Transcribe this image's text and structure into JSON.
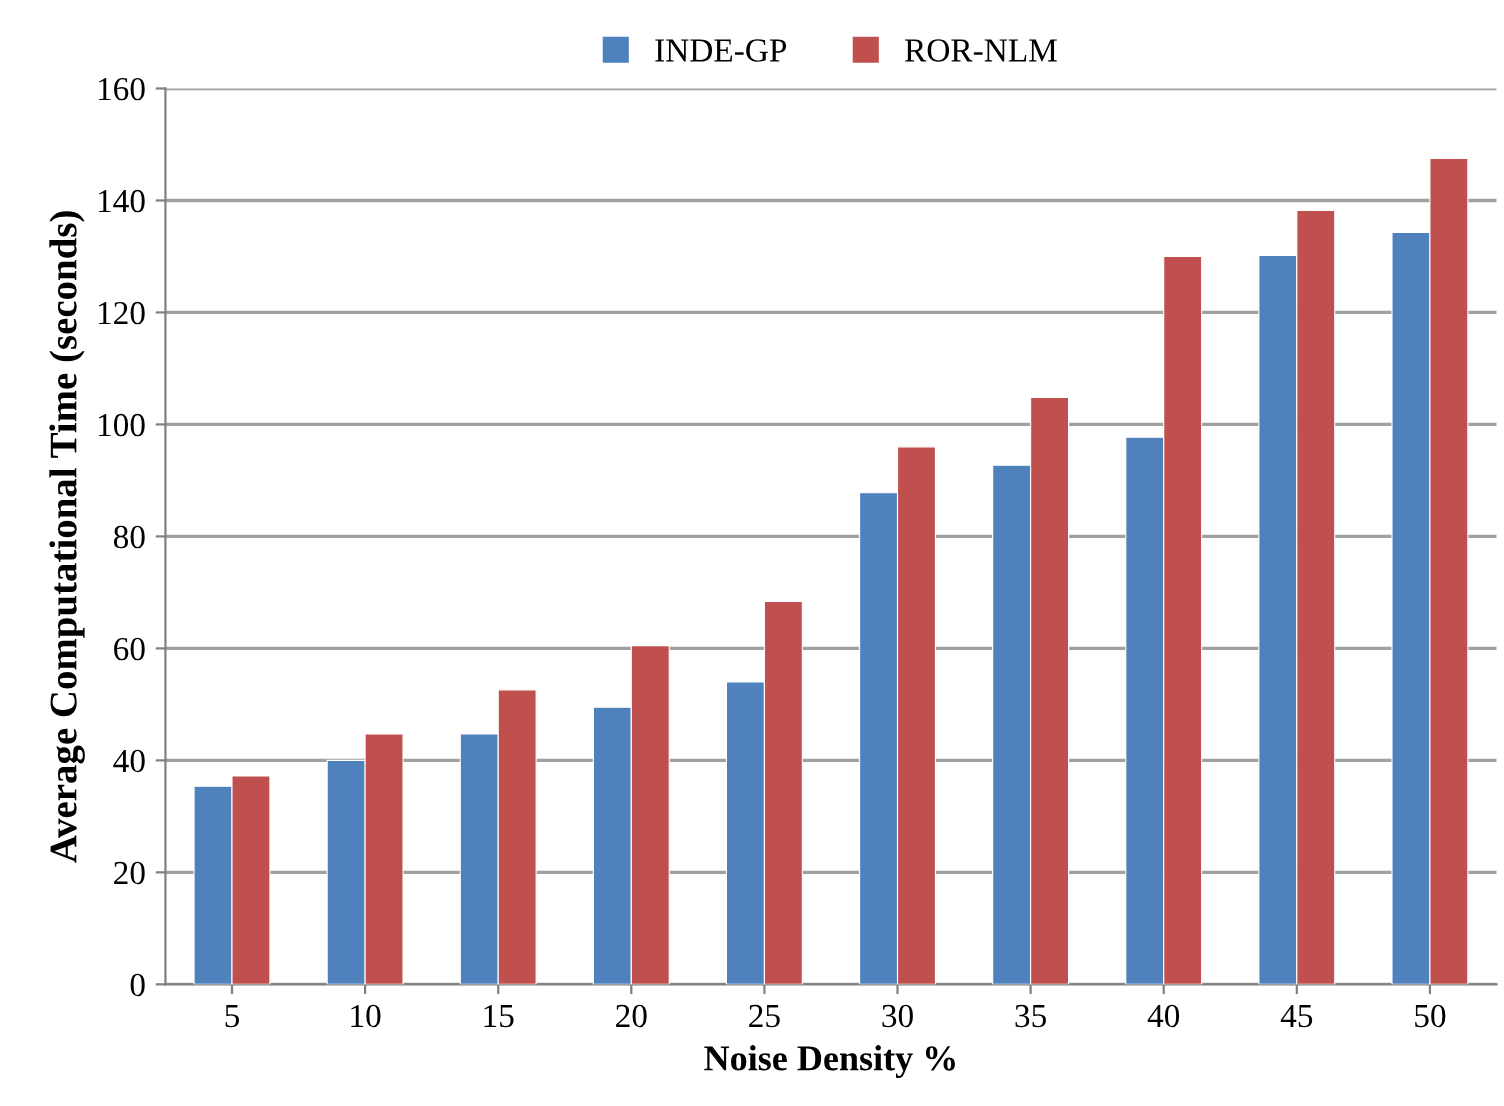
{
  "chart_data": {
    "type": "bar",
    "xlabel": "Noise Density %",
    "ylabel": "Average Computational Time (seconds)",
    "categories": [
      "5",
      "10",
      "15",
      "20",
      "25",
      "30",
      "35",
      "40",
      "45",
      "50"
    ],
    "series": [
      {
        "name": "INDE-GP",
        "color": "#4f81bd",
        "values": [
          35.4,
          40,
          44.7,
          49.5,
          54,
          87.8,
          92.7,
          97.7,
          130.2,
          134.3
        ]
      },
      {
        "name": "ROR-NLM",
        "color": "#c0504d",
        "values": [
          37.2,
          44.7,
          52.6,
          60.5,
          68.4,
          96,
          104.8,
          130,
          138.2,
          147.5
        ]
      }
    ],
    "ylim": [
      0,
      160
    ],
    "yticks": [
      0,
      20,
      40,
      60,
      80,
      100,
      120,
      140,
      160
    ],
    "grid": "y",
    "legend": "top"
  }
}
